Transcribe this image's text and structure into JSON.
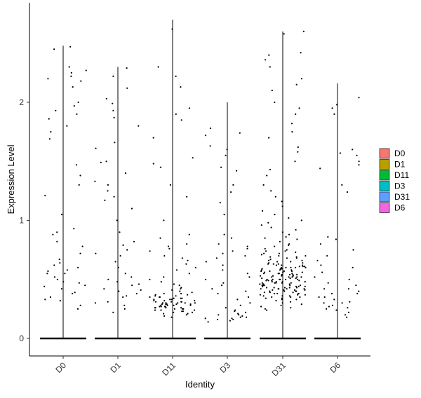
{
  "chart_data": {
    "type": "violin-jitter",
    "xlabel": "Identity",
    "ylabel": "Expression Level",
    "categories": [
      "D0",
      "D1",
      "D11",
      "D3",
      "D31",
      "D6"
    ],
    "y_ticks": [
      0,
      1,
      2
    ],
    "ylim": [
      -0.15,
      2.85
    ],
    "grid": false,
    "legend_position": "right",
    "legend": [
      {
        "label": "D0",
        "color": "#F8766D"
      },
      {
        "label": "D1",
        "color": "#B79F00"
      },
      {
        "label": "D11",
        "color": "#00BA38"
      },
      {
        "label": "D3",
        "color": "#00BFC4"
      },
      {
        "label": "D31",
        "color": "#619CFF"
      },
      {
        "label": "D6",
        "color": "#F564E3"
      }
    ],
    "series": [
      {
        "group": "D0",
        "max": 2.48,
        "nonzero_points": [
          2.47,
          2.45,
          2.3,
          2.27,
          2.25,
          2.22,
          2.2,
          2.18,
          2.13,
          2.0,
          1.97,
          1.93,
          1.9,
          1.86,
          1.8,
          1.75,
          1.69,
          1.47,
          1.38,
          1.3,
          1.21,
          1.05,
          0.93,
          0.9,
          0.88,
          0.82,
          0.78,
          0.72,
          0.67,
          0.64,
          0.6,
          0.57,
          0.55,
          0.52,
          0.5,
          0.48,
          0.45,
          0.42,
          0.39,
          0.35,
          0.32,
          0.28,
          0.25,
          0.62,
          0.55,
          0.47,
          0.38,
          0.33,
          0.58,
          0.44
        ]
      },
      {
        "group": "D1",
        "max": 2.3,
        "nonzero_points": [
          2.29,
          2.22,
          2.12,
          2.03,
          1.99,
          1.93,
          1.87,
          1.8,
          1.66,
          1.61,
          1.5,
          1.49,
          1.4,
          1.33,
          1.3,
          1.25,
          1.2,
          1.17,
          1.1,
          1.0,
          0.9,
          0.82,
          0.79,
          0.75,
          0.72,
          0.7,
          0.65,
          0.6,
          0.55,
          0.5,
          0.48,
          0.46,
          0.42,
          0.4,
          0.38,
          0.35,
          0.3,
          0.28,
          0.25,
          0.22,
          0.45,
          0.36,
          0.31,
          0.52,
          0.41
        ]
      },
      {
        "group": "D11",
        "max": 2.7,
        "nonzero_points": [
          2.62,
          2.3,
          2.22,
          2.13,
          1.95,
          1.9,
          1.85,
          1.7,
          1.53,
          1.48,
          1.45,
          1.3,
          1.2,
          1.0,
          0.88,
          0.85,
          0.8,
          0.78,
          0.76,
          0.74,
          0.7,
          0.68,
          0.66,
          0.63,
          0.6,
          0.58,
          0.55,
          0.52,
          0.5,
          0.48,
          0.46,
          0.45,
          0.43,
          0.42,
          0.41,
          0.4,
          0.39,
          0.38,
          0.37,
          0.36,
          0.35,
          0.34,
          0.33,
          0.32,
          0.31,
          0.3,
          0.29,
          0.28,
          0.27,
          0.26,
          0.25,
          0.24,
          0.23,
          0.22,
          0.21,
          0.2,
          0.19,
          0.18,
          0.33,
          0.31,
          0.29,
          0.27,
          0.35,
          0.3,
          0.28,
          0.32,
          0.26,
          0.24,
          0.36,
          0.3,
          0.25,
          0.34,
          0.29,
          0.27,
          0.31,
          0.22,
          0.38,
          0.33,
          0.28,
          0.26,
          0.3,
          0.35,
          0.24,
          0.29,
          0.32,
          0.27,
          0.25,
          0.21,
          0.37,
          0.3,
          0.28,
          0.23,
          0.34,
          0.31,
          0.26,
          0.29
        ]
      },
      {
        "group": "D3",
        "max": 2.0,
        "nonzero_points": [
          1.78,
          1.74,
          1.72,
          1.63,
          1.6,
          1.55,
          1.45,
          1.42,
          1.3,
          1.24,
          1.15,
          1.05,
          0.88,
          0.85,
          0.8,
          0.78,
          0.76,
          0.74,
          0.72,
          0.7,
          0.68,
          0.65,
          0.62,
          0.58,
          0.55,
          0.52,
          0.5,
          0.47,
          0.45,
          0.42,
          0.4,
          0.38,
          0.35,
          0.33,
          0.3,
          0.28,
          0.26,
          0.24,
          0.22,
          0.2,
          0.18,
          0.17,
          0.16,
          0.15,
          0.14,
          0.18,
          0.2,
          0.17,
          0.23,
          0.16,
          0.19,
          0.21
        ]
      },
      {
        "group": "D31",
        "max": 2.6,
        "nonzero_points": [
          2.6,
          2.58,
          2.42,
          2.4,
          2.36,
          2.3,
          2.2,
          2.15,
          2.1,
          2.0,
          1.95,
          1.9,
          1.82,
          1.75,
          1.7,
          1.62,
          1.58,
          1.5,
          1.43,
          1.38,
          1.3,
          1.25,
          1.2,
          1.16,
          1.12,
          1.08,
          1.05,
          1.02,
          1.0,
          0.98,
          0.96,
          0.94,
          0.92,
          0.9,
          0.88,
          0.86,
          0.85,
          0.84,
          0.82,
          0.8,
          0.79,
          0.78,
          0.76,
          0.75,
          0.74,
          0.73,
          0.72,
          0.71,
          0.7,
          0.69,
          0.68,
          0.67,
          0.66,
          0.65,
          0.64,
          0.63,
          0.62,
          0.61,
          0.6,
          0.59,
          0.58,
          0.57,
          0.56,
          0.55,
          0.54,
          0.53,
          0.52,
          0.51,
          0.5,
          0.49,
          0.48,
          0.47,
          0.46,
          0.45,
          0.44,
          0.43,
          0.42,
          0.41,
          0.4,
          0.39,
          0.38,
          0.37,
          0.36,
          0.35,
          0.34,
          0.33,
          0.32,
          0.31,
          0.3,
          0.29,
          0.28,
          0.27,
          0.26,
          0.25,
          0.24,
          0.6,
          0.55,
          0.5,
          0.45,
          0.62,
          0.58,
          0.52,
          0.48,
          0.44,
          0.4,
          0.65,
          0.57,
          0.53,
          0.47,
          0.42,
          0.38,
          0.7,
          0.61,
          0.54,
          0.49,
          0.43,
          0.36,
          0.68,
          0.6,
          0.51,
          0.46,
          0.41,
          0.35,
          0.72,
          0.63,
          0.56,
          0.5,
          0.44,
          0.39,
          0.33,
          0.66,
          0.59,
          0.52,
          0.47,
          0.42,
          0.37,
          0.74,
          0.64,
          0.57,
          0.5,
          0.45,
          0.4,
          0.34,
          0.69,
          0.6,
          0.53,
          0.48,
          0.43,
          0.38,
          0.55,
          0.5,
          0.45,
          0.58,
          0.52,
          0.46,
          0.41,
          0.61,
          0.54,
          0.49,
          0.44,
          0.39,
          0.56,
          0.51,
          0.47,
          0.42,
          0.63,
          0.55,
          0.48,
          0.43,
          0.36,
          0.59,
          0.53,
          0.46,
          0.4,
          0.57,
          0.5,
          0.45,
          0.41,
          0.35,
          0.62,
          0.54,
          0.49,
          0.43,
          0.38,
          0.6,
          0.52,
          0.47,
          0.42,
          0.37
        ]
      },
      {
        "group": "D6",
        "max": 2.16,
        "nonzero_points": [
          2.04,
          1.98,
          1.95,
          1.9,
          1.6,
          1.57,
          1.55,
          1.5,
          1.47,
          1.44,
          1.3,
          1.24,
          0.86,
          0.84,
          0.8,
          0.75,
          0.7,
          0.66,
          0.62,
          0.6,
          0.56,
          0.52,
          0.5,
          0.47,
          0.45,
          0.42,
          0.4,
          0.38,
          0.35,
          0.33,
          0.3,
          0.28,
          0.26,
          0.24,
          0.22,
          0.2,
          0.18,
          0.38,
          0.31,
          0.27,
          0.42,
          0.35,
          0.3,
          0.25
        ]
      }
    ]
  }
}
